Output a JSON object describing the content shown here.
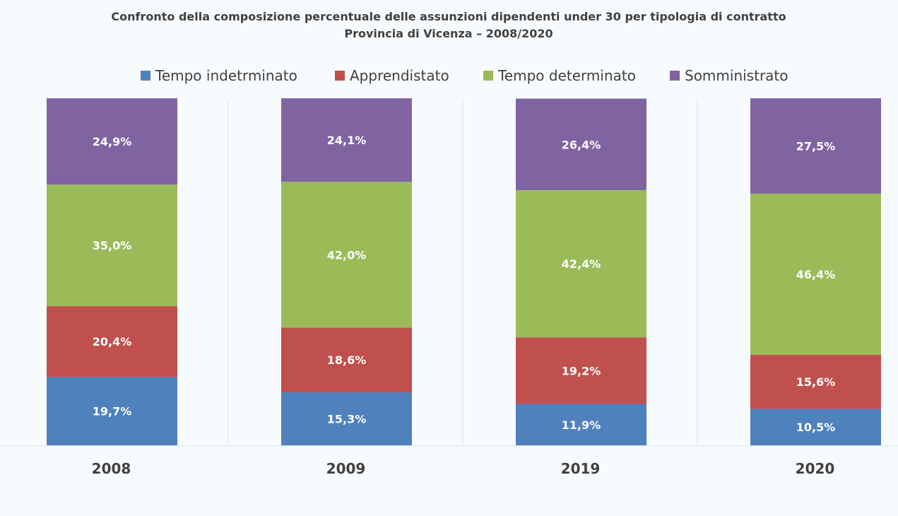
{
  "chart_data": {
    "type": "bar",
    "stacked": true,
    "title_line1": "Confronto della composizione percentuale delle assunzioni dipendenti under 30 per tipologia di contratto",
    "title_line2": "Provincia di Vicenza – 2008/2020",
    "categories": [
      "2008",
      "2009",
      "2019",
      "2020"
    ],
    "series": [
      {
        "name": "Tempo indetrminato",
        "color": "#4f81bd",
        "values": [
          19.7,
          15.3,
          11.9,
          10.5
        ],
        "labels": [
          "19,7%",
          "15,3%",
          "11,9%",
          "10,5%"
        ]
      },
      {
        "name": "Apprendistato",
        "color": "#c0504d",
        "values": [
          20.4,
          18.6,
          19.2,
          15.6
        ],
        "labels": [
          "20,4%",
          "18,6%",
          "19,2%",
          "15,6%"
        ]
      },
      {
        "name": "Tempo determinato",
        "color": "#9bbb59",
        "values": [
          35.0,
          42.0,
          42.4,
          46.4
        ],
        "labels": [
          "35,0%",
          "42,0%",
          "42,4%",
          "46,4%"
        ]
      },
      {
        "name": "Somministrato",
        "color": "#8064a2",
        "values": [
          24.9,
          24.1,
          26.4,
          27.5
        ],
        "labels": [
          "24,9%",
          "24,1%",
          "26,4%",
          "27,5%"
        ]
      }
    ],
    "ylim": [
      0,
      100
    ],
    "legend": "top",
    "grid": false
  }
}
